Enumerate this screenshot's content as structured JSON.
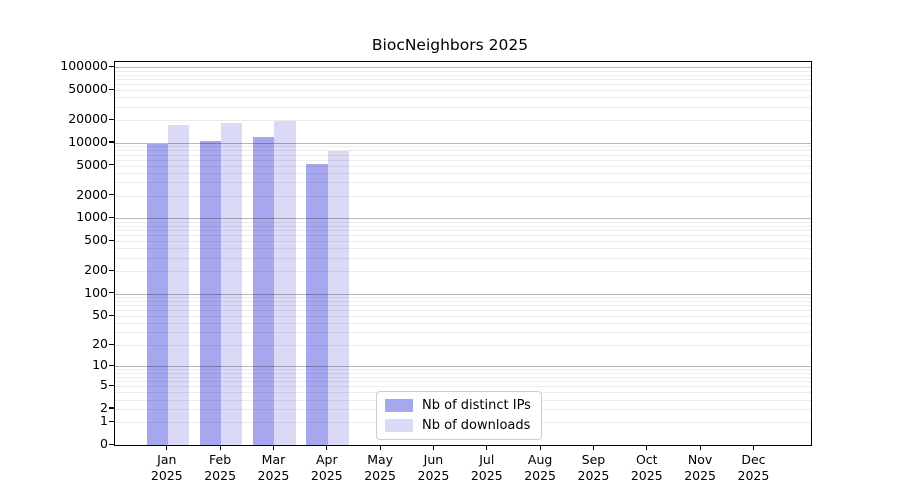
{
  "chart_data": {
    "type": "bar",
    "title": "BiocNeighbors 2025",
    "year_label": "2025",
    "categories": [
      "Jan",
      "Feb",
      "Mar",
      "Apr",
      "May",
      "Jun",
      "Jul",
      "Aug",
      "Sep",
      "Oct",
      "Nov",
      "Dec"
    ],
    "series": [
      {
        "name": "Nb of distinct IPs",
        "color": "#a7a7ef",
        "values": [
          9700,
          10500,
          11900,
          5300,
          null,
          null,
          null,
          null,
          null,
          null,
          null,
          null
        ]
      },
      {
        "name": "Nb of downloads",
        "color": "#dadaf6",
        "values": [
          17100,
          18100,
          19800,
          7800,
          null,
          null,
          null,
          null,
          null,
          null,
          null,
          null
        ]
      }
    ],
    "y_axis": {
      "scale": "log1p",
      "max": 100000,
      "tick_labels": [
        "100000",
        "50000",
        "20000",
        "10000",
        "5000",
        "2000",
        "1000",
        "500",
        "200",
        "100",
        "50",
        "20",
        "10",
        "5",
        "2",
        "1",
        "0"
      ]
    },
    "grid": {
      "horizontal": "on",
      "minor_log_lines": "on"
    },
    "legend_position": "bottom-center"
  }
}
